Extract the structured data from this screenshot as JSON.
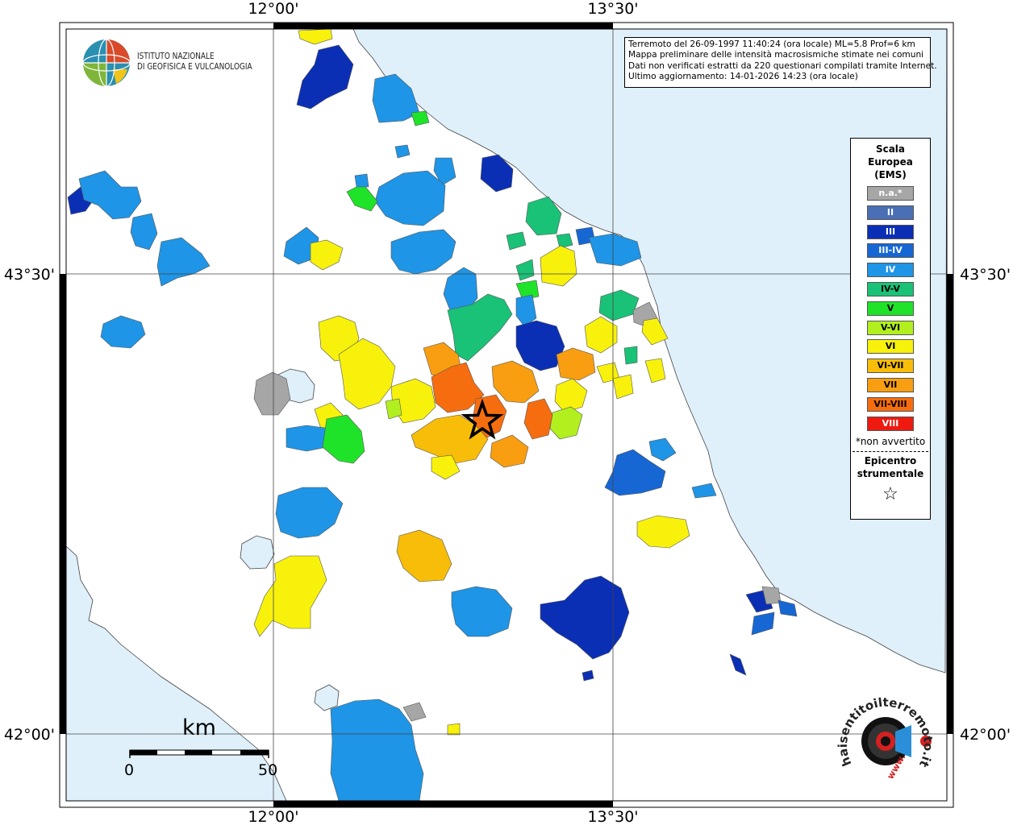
{
  "map": {
    "coordinates": {
      "lon_left": "12°00'",
      "lon_right": "13°30'",
      "lat_top": "43°30'",
      "lat_bottom": "42°00'"
    },
    "colors": {
      "sea": "#dff0fb",
      "land": "#ffffff",
      "lake": "#dff0fb"
    }
  },
  "logo": {
    "line1": "ISTITUTO NAZIONALE",
    "line2": "DI GEOFISICA E VULCANOLOGIA"
  },
  "info": {
    "line1": "Terremoto del 26-09-1997 11:40:24 (ora locale) ML=5.8 Prof=6 km",
    "line2": "Mappa preliminare delle intensità macrosismiche stimate nei comuni",
    "line3": "Dati non verificati estratti da 220 questionari compilati tramite Internet.",
    "line4": "Ultimo aggiornamento: 14-01-2026 14:23 (ora locale)"
  },
  "legend": {
    "title1": "Scala",
    "title2": "Europea",
    "title3": "(EMS)",
    "items": [
      {
        "label": "n.a.*",
        "color": "#a6a6a6",
        "text_color": "#ffffff"
      },
      {
        "label": "II",
        "color": "#4a6fb5",
        "text_color": "#ffffff"
      },
      {
        "label": "III",
        "color": "#0b2fb4",
        "text_color": "#ffffff"
      },
      {
        "label": "III-IV",
        "color": "#1667d4",
        "text_color": "#ffffff"
      },
      {
        "label": "IV",
        "color": "#1e95e6",
        "text_color": "#ffffff"
      },
      {
        "label": "IV-V",
        "color": "#19c276",
        "text_color": "#000000"
      },
      {
        "label": "V",
        "color": "#1fe328",
        "text_color": "#000000"
      },
      {
        "label": "V-VI",
        "color": "#b2ef1f",
        "text_color": "#000000"
      },
      {
        "label": "VI",
        "color": "#f8f10b",
        "text_color": "#000000"
      },
      {
        "label": "VI-VII",
        "color": "#f8bd08",
        "text_color": "#000000"
      },
      {
        "label": "VII",
        "color": "#f89e10",
        "text_color": "#000000"
      },
      {
        "label": "VII-VIII",
        "color": "#f66d0f",
        "text_color": "#000000"
      },
      {
        "label": "VIII",
        "color": "#ee1a10",
        "text_color": "#ffffff"
      }
    ],
    "note": "*non avvertito",
    "epicenter1": "Epicentro",
    "epicenter2": "strumentale"
  },
  "scale_bar": {
    "unit": "km",
    "min": "0",
    "max": "50"
  },
  "footer_logo": {
    "text": "haisentitoilterremoto.it",
    "url": "www."
  }
}
